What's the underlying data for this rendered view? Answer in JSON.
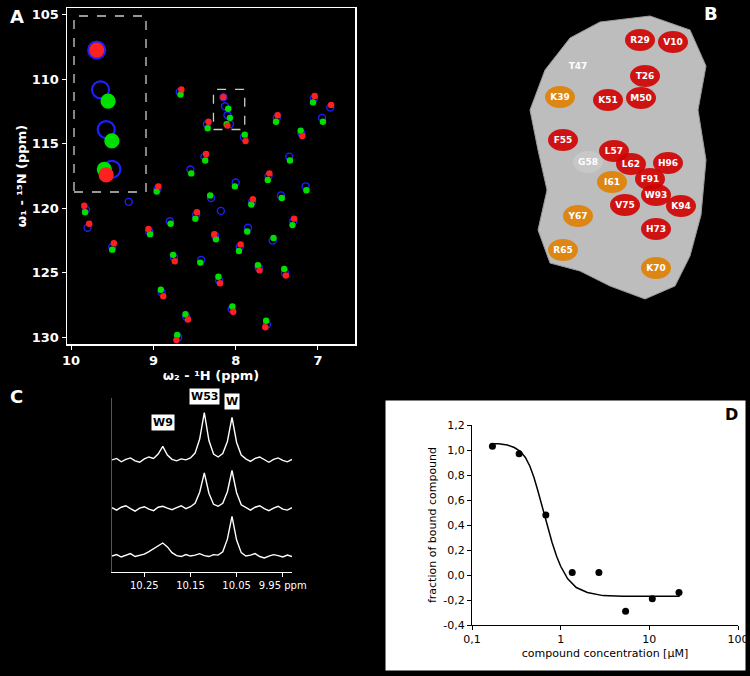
{
  "chart_data": [
    {
      "type": "scatter",
      "title": "A",
      "x_label": "ω₂ - ¹H (ppm)",
      "y_label": "ω₁ - ¹⁵N (ppm)",
      "xlim": [
        10.05,
        6.55
      ],
      "ylim": [
        130.5,
        104.5
      ],
      "xticks": [
        10,
        9,
        8,
        7
      ],
      "yticks": [
        105,
        110,
        115,
        120,
        125,
        130
      ],
      "grid": false,
      "series": [
        {
          "color": "#1f1fff",
          "marker": "circle-open",
          "x": [
            9.82,
            9.8,
            9.5,
            9.3,
            8.95,
            8.9,
            8.8,
            8.75,
            8.68,
            8.6,
            8.55,
            8.48,
            8.42,
            8.35,
            8.3,
            8.25,
            8.2,
            8.15,
            8.13,
            8.1,
            8.07,
            8.05,
            8.0,
            7.95,
            7.9,
            7.85,
            7.8,
            7.72,
            7.6,
            7.55,
            7.5,
            7.45,
            7.4,
            7.35,
            7.3,
            7.2,
            7.15,
            7.05,
            6.95,
            6.85,
            8.7,
            7.62,
            9.05,
            8.38,
            8.18
          ],
          "values": [
            120.1,
            121.5,
            123.0,
            119.5,
            118.5,
            126.5,
            121.0,
            123.8,
            111.0,
            128.4,
            117.0,
            120.5,
            124.0,
            113.5,
            119.2,
            122.1,
            125.6,
            111.4,
            112.1,
            112.8,
            113.5,
            127.8,
            118.0,
            123.0,
            114.5,
            121.5,
            119.5,
            124.6,
            117.5,
            122.5,
            113.0,
            119.0,
            125.0,
            116.0,
            121.0,
            114.2,
            118.3,
            111.5,
            113.0,
            112.2,
            130.0,
            129.0,
            121.8,
            116.0,
            120.2
          ]
        },
        {
          "color": "#00e000",
          "marker": "circle",
          "x": [
            9.83,
            9.5,
            8.96,
            8.91,
            8.79,
            8.76,
            8.67,
            8.61,
            8.54,
            8.49,
            8.43,
            8.34,
            8.31,
            8.24,
            8.21,
            8.09,
            8.07,
            8.11,
            8.04,
            8.01,
            7.96,
            7.89,
            7.86,
            7.81,
            7.73,
            7.61,
            7.54,
            7.51,
            7.44,
            7.41,
            7.34,
            7.31,
            7.21,
            7.14,
            7.06,
            6.94,
            8.71,
            7.63,
            9.04,
            8.37
          ],
          "values": [
            120.3,
            123.2,
            118.7,
            126.3,
            121.2,
            123.6,
            111.2,
            128.2,
            117.3,
            120.8,
            124.2,
            113.8,
            119.0,
            122.4,
            125.3,
            112.3,
            113.0,
            113.5,
            127.6,
            118.3,
            123.3,
            114.3,
            121.8,
            119.7,
            124.4,
            117.8,
            122.3,
            113.3,
            119.2,
            124.7,
            116.3,
            121.3,
            114.0,
            118.6,
            111.8,
            113.3,
            129.8,
            128.7,
            122.0,
            116.3
          ]
        },
        {
          "color": "#ff2020",
          "marker": "circle",
          "x": [
            9.84,
            9.78,
            9.48,
            8.94,
            8.88,
            8.74,
            8.66,
            8.58,
            8.47,
            8.33,
            8.26,
            8.19,
            8.15,
            8.1,
            8.03,
            7.94,
            7.88,
            7.79,
            7.71,
            7.59,
            7.49,
            7.39,
            7.29,
            7.19,
            7.04,
            6.84,
            8.72,
            9.06,
            8.36,
            7.64
          ],
          "values": [
            119.8,
            121.2,
            122.7,
            118.3,
            126.8,
            124.1,
            110.8,
            128.6,
            120.3,
            113.3,
            122.0,
            125.8,
            111.4,
            113.6,
            128.0,
            122.8,
            114.8,
            119.3,
            124.8,
            117.3,
            112.8,
            125.2,
            120.8,
            114.4,
            111.3,
            112.0,
            130.2,
            121.6,
            115.8,
            129.2
          ]
        }
      ],
      "inset": {
        "xlim": [
          8.27,
          7.89
        ],
        "ylim": [
          113.9,
          110.8
        ],
        "tick_labels": false
      }
    },
    {
      "type": "line",
      "title": "C",
      "x": [
        10.32,
        10.31,
        10.3,
        10.29,
        10.28,
        10.27,
        10.26,
        10.25,
        10.24,
        10.23,
        10.22,
        10.21,
        10.2,
        10.19,
        10.18,
        10.17,
        10.16,
        10.15,
        10.14,
        10.13,
        10.12,
        10.11,
        10.1,
        10.09,
        10.08,
        10.07,
        10.06,
        10.05,
        10.04,
        10.03,
        10.02,
        10.01,
        10.0,
        9.99,
        9.98,
        9.97,
        9.96,
        9.95,
        9.94,
        9.93
      ],
      "xlim": [
        10.32,
        9.93
      ],
      "ylim": [
        -0.3,
        3.3
      ],
      "xticks": [
        10.25,
        10.15,
        10.05,
        {
          "value": 9.95,
          "label": "9.95 ppm"
        }
      ],
      "tick_labels": "x",
      "grid": false,
      "series": [
        {
          "color": "#ffffff",
          "values": [
            2.02,
            2.05,
            1.98,
            2.03,
            2.06,
            2.0,
            1.97,
            2.04,
            2.08,
            2.05,
            2.14,
            2.3,
            2.12,
            2.03,
            2.0,
            2.04,
            2.02,
            2.06,
            2.16,
            2.45,
            3.0,
            2.42,
            2.14,
            2.08,
            2.15,
            2.4,
            2.9,
            2.38,
            2.12,
            2.04,
            1.99,
            2.05,
            2.08,
            2.02,
            1.97,
            2.03,
            2.06,
            2.01,
            1.98,
            2.03
          ]
        },
        {
          "color": "#ffffff",
          "values": [
            1.03,
            0.98,
            1.04,
            1.07,
            1.01,
            0.96,
            1.02,
            1.05,
            1.0,
            0.97,
            1.04,
            1.06,
            1.02,
            0.99,
            1.03,
            1.07,
            1.01,
            1.05,
            1.12,
            1.35,
            1.75,
            1.33,
            1.1,
            1.06,
            1.12,
            1.36,
            1.8,
            1.34,
            1.09,
            1.03,
            0.98,
            1.04,
            1.07,
            1.01,
            0.97,
            1.02,
            1.06,
            1.0,
            0.98,
            1.03
          ]
        },
        {
          "color": "#ffffff",
          "values": [
            0.03,
            0.06,
            0.01,
            0.05,
            0.08,
            0.02,
            0.04,
            0.07,
            0.12,
            0.18,
            0.25,
            0.3,
            0.22,
            0.1,
            0.04,
            0.02,
            0.06,
            0.03,
            0.05,
            0.08,
            0.04,
            0.02,
            0.06,
            0.05,
            0.12,
            0.38,
            0.85,
            0.36,
            0.1,
            0.03,
            0.05,
            0.08,
            0.02,
            -0.01,
            0.03,
            0.06,
            0.04,
            0.01,
            0.05,
            0.02
          ]
        }
      ],
      "annotations": [
        {
          "text": "W53",
          "x": 10.12,
          "y": 3.15
        },
        {
          "text": "W",
          "x": 10.06,
          "y": 3.05
        },
        {
          "text": "W9",
          "x": 10.21,
          "y": 2.62
        }
      ]
    },
    {
      "type": "scatter",
      "title": "D",
      "x_label": "compound concentration [µM]",
      "y_label": "fraction of bound compound",
      "log": "x",
      "grid": false,
      "xlim": [
        0.1,
        100
      ],
      "ylim": [
        -0.4,
        1.2
      ],
      "xticks": [
        {
          "value": 0.1,
          "label": "0,1"
        },
        1,
        10,
        100
      ],
      "yticks": [
        {
          "value": -0.4,
          "label": "-0,4"
        },
        {
          "value": -0.2,
          "label": "-0,2"
        },
        {
          "value": 0,
          "label": "0,0"
        },
        {
          "value": 0.2,
          "label": "0,2"
        },
        {
          "value": 0.4,
          "label": "0,4"
        },
        {
          "value": 0.6,
          "label": "0,6"
        },
        {
          "value": 0.8,
          "label": "0,8"
        },
        {
          "value": 1.0,
          "label": "1,0"
        },
        {
          "value": 1.2,
          "label": "1,2"
        }
      ],
      "series": [
        {
          "type": "scatter",
          "color": "#000000",
          "marker": "circle",
          "x": [
            0.17,
            0.34,
            0.68,
            1.35,
            2.7,
            5.4,
            10.8,
            21.6
          ],
          "values": [
            1.03,
            0.97,
            0.48,
            0.02,
            0.02,
            -0.29,
            -0.19,
            -0.14
          ]
        },
        {
          "type": "line",
          "color": "#000000",
          "line_style": "solid",
          "x": [
            0.17,
            0.2,
            0.25,
            0.3,
            0.35,
            0.4,
            0.45,
            0.5,
            0.55,
            0.6,
            0.65,
            0.7,
            0.8,
            0.9,
            1.0,
            1.2,
            1.5,
            2,
            3,
            5,
            10,
            22
          ],
          "values": [
            1.05,
            1.05,
            1.04,
            1.02,
            0.99,
            0.94,
            0.87,
            0.78,
            0.68,
            0.58,
            0.49,
            0.4,
            0.26,
            0.15,
            0.07,
            -0.03,
            -0.1,
            -0.14,
            -0.165,
            -0.17,
            -0.17,
            -0.17
          ]
        }
      ]
    }
  ],
  "diagram": {
    "title": "B",
    "residues": [
      "R29",
      "V10",
      "T47",
      "T26",
      "K39",
      "K51",
      "M50",
      "F55",
      "G58",
      "L57",
      "L62",
      "H96",
      "I61",
      "F91",
      "W93",
      "K94",
      "V75",
      "Y67",
      "H73",
      "R65",
      "K70"
    ]
  }
}
